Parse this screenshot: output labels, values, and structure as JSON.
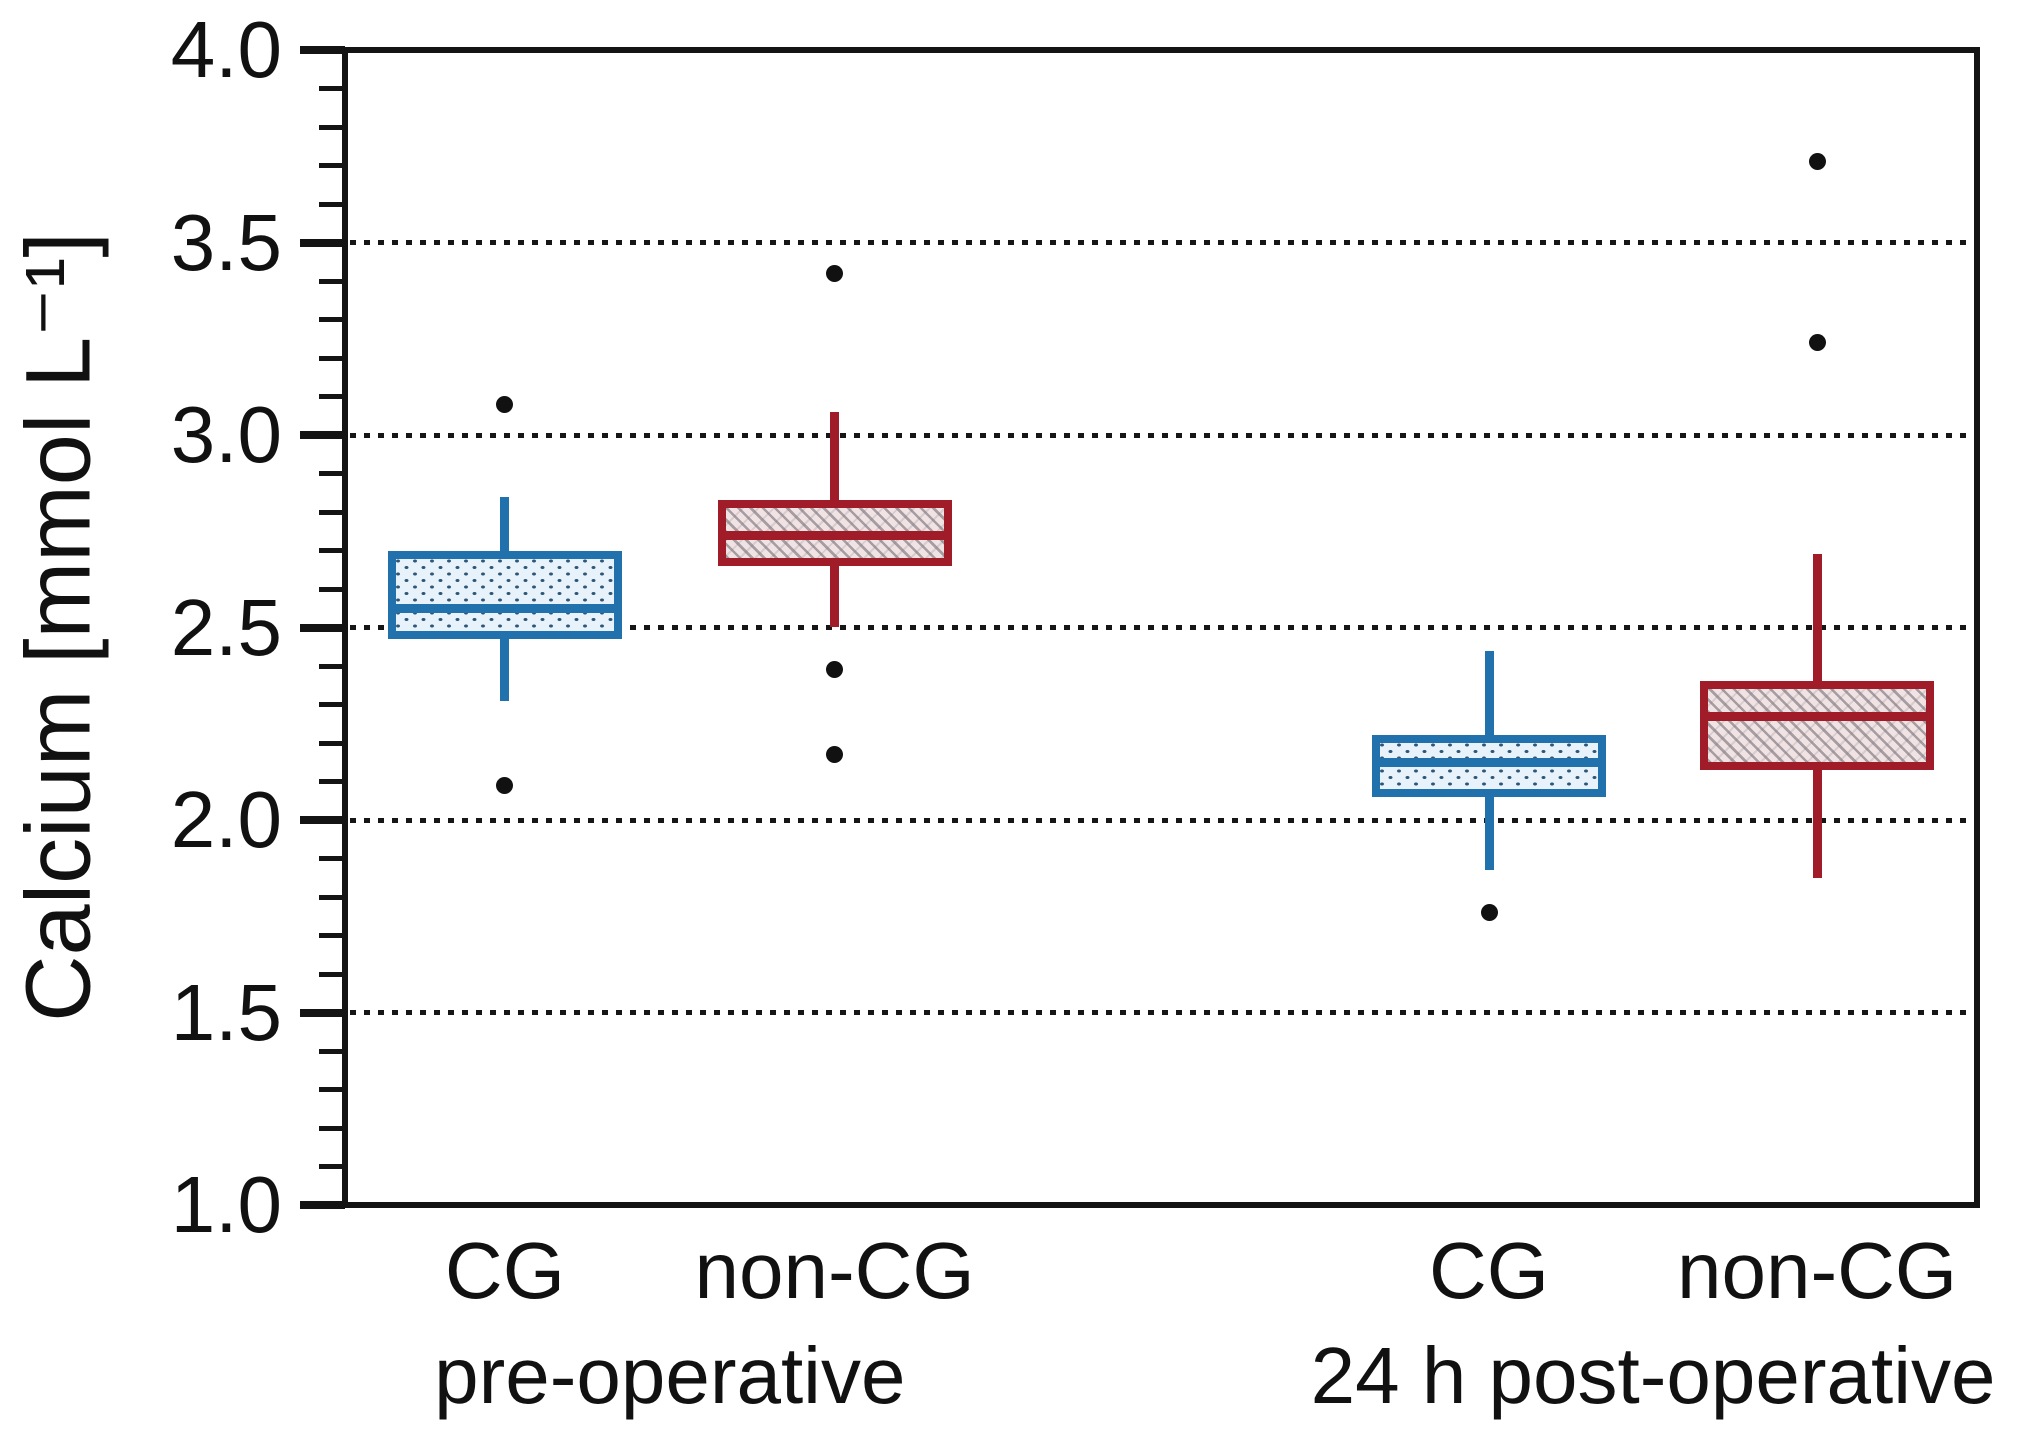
{
  "chart_data": {
    "type": "box",
    "title": "",
    "xlabel": "",
    "ylabel": "Calcium [mmol L⁻¹]",
    "ylim": [
      1.0,
      4.0
    ],
    "yticks": [
      {
        "value": 4.0,
        "label": "4.0"
      },
      {
        "value": 3.5,
        "label": "3.5"
      },
      {
        "value": 3.0,
        "label": "3.0"
      },
      {
        "value": 2.5,
        "label": "2.5"
      },
      {
        "value": 2.0,
        "label": "2.0"
      },
      {
        "value": 1.5,
        "label": "1.5"
      },
      {
        "value": 1.0,
        "label": "1.0"
      }
    ],
    "minor_tick_step": 0.1,
    "gridlines": [
      3.5,
      3.0,
      2.5,
      2.0,
      1.5
    ],
    "grid_style": "horizontal dotted black",
    "legend": "none",
    "groups": [
      {
        "label": "pre-operative"
      },
      {
        "label": "24 h post-operative"
      }
    ],
    "boxes": [
      {
        "group": 0,
        "category": "CG",
        "style": "blue-dotted",
        "color": "blue",
        "whisker_low": 2.31,
        "q1": 2.47,
        "median": 2.55,
        "q3": 2.7,
        "whisker_high": 2.84,
        "outliers": [
          3.08,
          2.09
        ]
      },
      {
        "group": 0,
        "category": "non-CG",
        "style": "red-hatched",
        "color": "red",
        "whisker_low": 2.5,
        "q1": 2.66,
        "median": 2.74,
        "q3": 2.83,
        "whisker_high": 3.06,
        "outliers": [
          3.42,
          2.39,
          2.17
        ]
      },
      {
        "group": 1,
        "category": "CG",
        "style": "blue-dotted",
        "color": "blue",
        "whisker_low": 1.87,
        "q1": 2.06,
        "median": 2.15,
        "q3": 2.22,
        "whisker_high": 2.44,
        "outliers": [
          1.76
        ]
      },
      {
        "group": 1,
        "category": "non-CG",
        "style": "red-hatched",
        "color": "red",
        "whisker_low": 1.85,
        "q1": 2.13,
        "median": 2.27,
        "q3": 2.36,
        "whisker_high": 2.69,
        "outliers": [
          3.71,
          3.24
        ]
      }
    ],
    "colors": {
      "cg_blue": "#2171ac",
      "noncg_red": "#a01c28",
      "blue_fill": "#e8f2fa",
      "red_fill": "#f1e3e4",
      "grid": "#161616",
      "frame": "#141414",
      "outlier": "#111111",
      "text": "#111111"
    }
  }
}
